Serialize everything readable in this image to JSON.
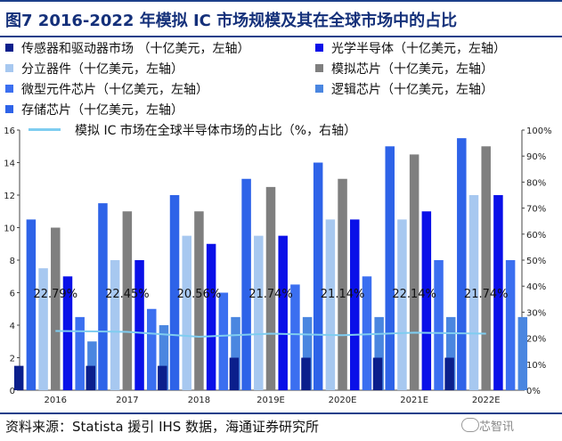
{
  "title": "图7  2016-2022 年模拟 IC 市场规模及其在全球市场中的占比",
  "source": "资料来源：Statista 援引 IHS 数据，海通证券研究所",
  "watermark": "芯智讯",
  "legend": [
    {
      "label": "传感器和驱动器市场 （十亿美元，左轴）",
      "color": "#0b1f8c",
      "kind": "bar"
    },
    {
      "label": "光学半导体（十亿美元，左轴）",
      "color": "#0a10e8",
      "kind": "bar"
    },
    {
      "label": "分立器件（十亿美元，左轴）",
      "color": "#a7c8f0",
      "kind": "bar"
    },
    {
      "label": "模拟芯片（十亿美元，左轴）",
      "color": "#7f7f7f",
      "kind": "bar"
    },
    {
      "label": "微型元件芯片（十亿美元，左轴）",
      "color": "#3b6ff0",
      "kind": "bar"
    },
    {
      "label": "逻辑芯片（十亿美元，左轴）",
      "color": "#4a86e0",
      "kind": "bar"
    },
    {
      "label": "存储芯片（十亿美元，左轴）",
      "color": "#2e63e8",
      "kind": "bar"
    },
    {
      "label": "模拟 IC 市场在全球半导体市场的占比（%，右轴）",
      "color": "#7fcdf0",
      "kind": "line"
    }
  ],
  "chart_data": {
    "type": "bar",
    "categories": [
      "2016",
      "2017",
      "2018",
      "2019E",
      "2020E",
      "2021E",
      "2022E"
    ],
    "series": [
      {
        "name": "传感器和驱动器市场 （十亿美元，左轴）",
        "axis": "left",
        "color": "#0b1f8c",
        "values": [
          1.5,
          1.5,
          1.5,
          2,
          2,
          2,
          2
        ]
      },
      {
        "name": "存储芯片（十亿美元，左轴）",
        "axis": "left",
        "color": "#2e63e8",
        "values": [
          10.5,
          11.5,
          12,
          13,
          14,
          15,
          15.5
        ]
      },
      {
        "name": "分立器件（十亿美元，左轴）",
        "axis": "left",
        "color": "#a7c8f0",
        "values": [
          7.5,
          8,
          9.5,
          9.5,
          10.5,
          10.5,
          12
        ]
      },
      {
        "name": "模拟芯片（十亿美元，左轴）",
        "axis": "left",
        "color": "#7f7f7f",
        "values": [
          10,
          11,
          11,
          12.5,
          13,
          14.5,
          15
        ]
      },
      {
        "name": "光学半导体（十亿美元，左轴）",
        "axis": "left",
        "color": "#0a10e8",
        "values": [
          7,
          8,
          9,
          9.5,
          10.5,
          11,
          12
        ]
      },
      {
        "name": "微型元件芯片（十亿美元，左轴）",
        "axis": "left",
        "color": "#3b6ff0",
        "values": [
          4.5,
          5,
          6,
          6.5,
          7,
          8,
          8
        ]
      },
      {
        "name": "逻辑芯片（十亿美元，左轴）",
        "axis": "left",
        "color": "#4a86e0",
        "values": [
          3,
          4,
          4.5,
          4.5,
          4.5,
          4.5,
          4.5
        ]
      },
      {
        "name": "模拟 IC 市场在全球半导体市场的占比（%，右轴）",
        "axis": "right",
        "type": "line",
        "color": "#7fcdf0",
        "values": [
          22.79,
          22.45,
          20.56,
          21.74,
          21.14,
          22.14,
          21.74
        ]
      }
    ],
    "data_labels": [
      "22.79%",
      "22.45%",
      "20.56%",
      "21.74%",
      "21.14%",
      "22.14%",
      "21.74%"
    ],
    "ylim_left": [
      0,
      16
    ],
    "yticks_left": [
      "0",
      "2",
      "4",
      "6",
      "8",
      "10",
      "12",
      "14",
      "16"
    ],
    "ylim_right": [
      0,
      100
    ],
    "yticks_right": [
      "0%",
      "10%",
      "20%",
      "30%",
      "40%",
      "50%",
      "60%",
      "70%",
      "80%",
      "90%",
      "100%"
    ],
    "grid": false,
    "legend_position": "top"
  }
}
